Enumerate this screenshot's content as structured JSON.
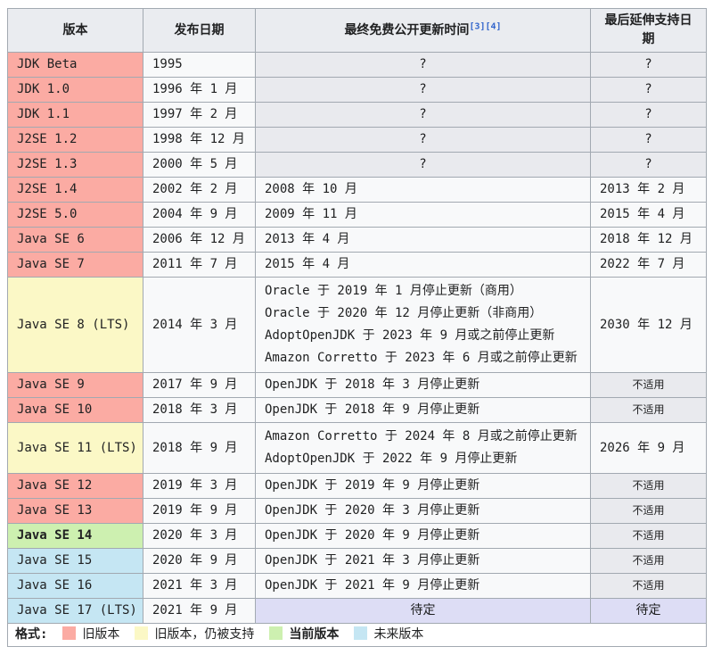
{
  "colors": {
    "border": "#a2a9b1",
    "header_bg": "#eaecf0",
    "muted_bg": "#e9eaee",
    "cell_bg": "#f8f9fa",
    "old": "#fbaba3",
    "old_supported": "#fbf8c6",
    "current": "#cdf0b0",
    "future": "#c5e6f3",
    "tbd": "#ddddf5",
    "link": "#3366cc"
  },
  "table": {
    "headers": [
      {
        "label": "版本"
      },
      {
        "label": "发布日期"
      },
      {
        "label": "最终免费公开更新时间",
        "refs": [
          "[3]",
          "[4]"
        ]
      },
      {
        "label": "最后延伸支持日期"
      }
    ],
    "rows": [
      {
        "version": "JDK Beta",
        "status": "old",
        "release": "1995",
        "updates": [
          "?"
        ],
        "updates_kind": "unknown",
        "extended": "?",
        "extended_kind": "unknown"
      },
      {
        "version": "JDK 1.0",
        "status": "old",
        "release": "1996 年 1 月",
        "updates": [
          "?"
        ],
        "updates_kind": "unknown",
        "extended": "?",
        "extended_kind": "unknown"
      },
      {
        "version": "JDK 1.1",
        "status": "old",
        "release": "1997 年 2 月",
        "updates": [
          "?"
        ],
        "updates_kind": "unknown",
        "extended": "?",
        "extended_kind": "unknown"
      },
      {
        "version": "J2SE 1.2",
        "status": "old",
        "release": "1998 年 12 月",
        "updates": [
          "?"
        ],
        "updates_kind": "unknown",
        "extended": "?",
        "extended_kind": "unknown"
      },
      {
        "version": "J2SE 1.3",
        "status": "old",
        "release": "2000 年 5 月",
        "updates": [
          "?"
        ],
        "updates_kind": "unknown",
        "extended": "?",
        "extended_kind": "unknown"
      },
      {
        "version": "J2SE 1.4",
        "status": "old",
        "release": "2002 年 2 月",
        "updates": [
          "2008 年 10 月"
        ],
        "updates_kind": "text",
        "extended": "2013 年 2 月",
        "extended_kind": "date"
      },
      {
        "version": "J2SE 5.0",
        "status": "old",
        "release": "2004 年 9 月",
        "updates": [
          "2009 年 11 月"
        ],
        "updates_kind": "text",
        "extended": "2015 年 4 月",
        "extended_kind": "date"
      },
      {
        "version": "Java SE 6",
        "status": "old",
        "release": "2006 年 12 月",
        "updates": [
          "2013 年 4 月"
        ],
        "updates_kind": "text",
        "extended": "2018 年 12 月",
        "extended_kind": "date"
      },
      {
        "version": "Java SE 7",
        "status": "old",
        "release": "2011 年 7 月",
        "updates": [
          "2015 年 4 月"
        ],
        "updates_kind": "text",
        "extended": "2022 年 7 月",
        "extended_kind": "date"
      },
      {
        "version": "Java SE 8 (LTS)",
        "status": "old_supported",
        "release": "2014 年 3 月",
        "updates": [
          "Oracle 于 2019 年 1 月停止更新（商用）",
          "Oracle 于 2020 年 12 月停止更新（非商用）",
          "AdoptOpenJDK 于 2023 年 9 月或之前停止更新",
          "Amazon Corretto 于 2023 年 6 月或之前停止更新"
        ],
        "updates_kind": "text",
        "extended": "2030 年 12 月",
        "extended_kind": "date"
      },
      {
        "version": "Java SE 9",
        "status": "old",
        "release": "2017 年 9 月",
        "updates": [
          "OpenJDK 于 2018 年 3 月停止更新"
        ],
        "updates_kind": "text",
        "extended": "不适用",
        "extended_kind": "na"
      },
      {
        "version": "Java SE 10",
        "status": "old",
        "release": "2018 年 3 月",
        "updates": [
          "OpenJDK 于 2018 年 9 月停止更新"
        ],
        "updates_kind": "text",
        "extended": "不适用",
        "extended_kind": "na"
      },
      {
        "version": "Java SE 11 (LTS)",
        "status": "old_supported",
        "release": "2018 年 9 月",
        "updates": [
          "Amazon Corretto 于 2024 年 8 月或之前停止更新",
          "AdoptOpenJDK 于 2022 年 9 月停止更新"
        ],
        "updates_kind": "text",
        "extended": "2026 年 9 月",
        "extended_kind": "date"
      },
      {
        "version": "Java SE 12",
        "status": "old",
        "release": "2019 年 3 月",
        "updates": [
          "OpenJDK 于 2019 年 9 月停止更新"
        ],
        "updates_kind": "text",
        "extended": "不适用",
        "extended_kind": "na"
      },
      {
        "version": "Java SE 13",
        "status": "old",
        "release": "2019 年 9 月",
        "updates": [
          "OpenJDK 于 2020 年 3 月停止更新"
        ],
        "updates_kind": "text",
        "extended": "不适用",
        "extended_kind": "na"
      },
      {
        "version": "Java SE 14",
        "status": "current",
        "release": "2020 年 3 月",
        "updates": [
          "OpenJDK 于 2020 年 9 月停止更新"
        ],
        "updates_kind": "text",
        "extended": "不适用",
        "extended_kind": "na"
      },
      {
        "version": "Java SE 15",
        "status": "future",
        "release": "2020 年 9 月",
        "updates": [
          "OpenJDK 于 2021 年 3 月停止更新"
        ],
        "updates_kind": "text",
        "extended": "不适用",
        "extended_kind": "na"
      },
      {
        "version": "Java SE 16",
        "status": "future",
        "release": "2021 年 3 月",
        "updates": [
          "OpenJDK 于 2021 年 9 月停止更新"
        ],
        "updates_kind": "text",
        "extended": "不适用",
        "extended_kind": "na"
      },
      {
        "version": "Java SE 17 (LTS)",
        "status": "future",
        "release": "2021 年 9 月",
        "updates": [
          "待定"
        ],
        "updates_kind": "tbd",
        "extended": "待定",
        "extended_kind": "tbd"
      }
    ]
  },
  "legend": {
    "label": "格式:",
    "items": [
      {
        "label": "旧版本",
        "status": "old",
        "bold": false
      },
      {
        "label": "旧版本，仍被支持",
        "status": "old_supported",
        "bold": false
      },
      {
        "label": "当前版本",
        "status": "current",
        "bold": true
      },
      {
        "label": "未来版本",
        "status": "future",
        "bold": false
      }
    ]
  }
}
